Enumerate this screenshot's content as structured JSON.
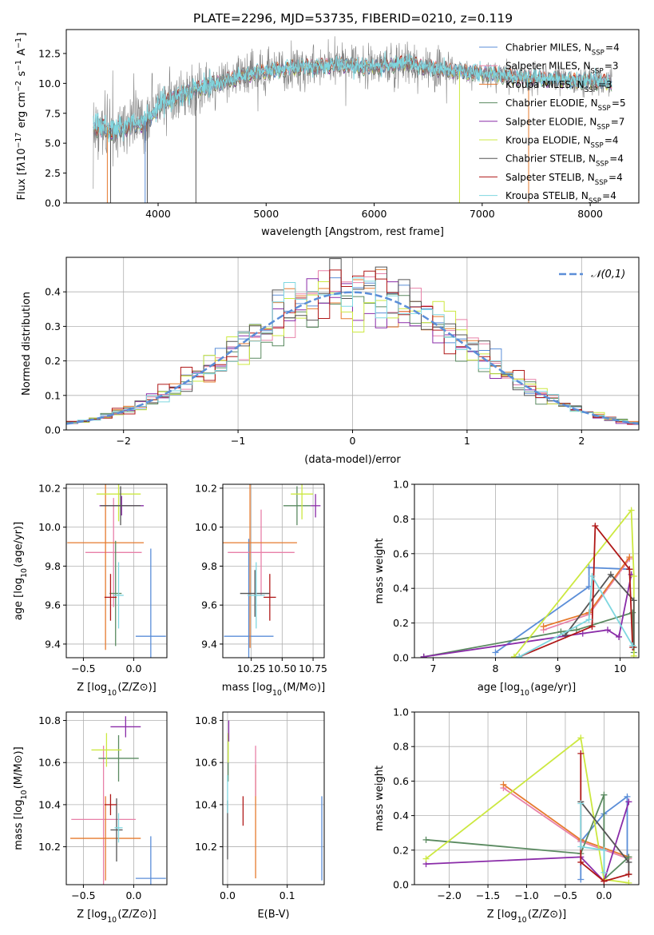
{
  "colors": {
    "blue": "#5b8ed8",
    "pink": "#e880a8",
    "orange": "#e67a2e",
    "green": "#5a8a60",
    "purple": "#8a2ca8",
    "yellow": "#cce840",
    "gray": "#555555",
    "red": "#b01818",
    "cyan": "#7fd7e0",
    "spec_gray": "#808080"
  },
  "chart_data": [
    {
      "id": "spectrum",
      "type": "line",
      "title": "PLATE=2296, MJD=53735, FIBERID=0210, z=0.119",
      "xlabel": "wavelength [Angstrom, rest frame]",
      "ylabel": "Flux [f$_\\lambda$10$^{-17}$ erg cm$^{-2}$ s$^{-1}$ A$^{-1}$]",
      "xlim": [
        3150,
        8450
      ],
      "ylim": [
        0,
        14.5
      ],
      "xticks": [
        4000,
        5000,
        6000,
        7000,
        8000
      ],
      "yticks": [
        "0.0",
        "2.5",
        "5.0",
        "7.5",
        "10.0",
        "12.5"
      ],
      "grid": false,
      "legend_position": "top-right",
      "legend": [
        {
          "label": "Chabrier MILES, N$_{SSP}$=4",
          "color": "blue"
        },
        {
          "label": "Salpeter MILES, N$_{SSP}$=3",
          "color": "pink"
        },
        {
          "label": "Kroupa MILES, N$_{SSP}$=3",
          "color": "orange"
        },
        {
          "label": "Chabrier ELODIE, N$_{SSP}$=5",
          "color": "green"
        },
        {
          "label": "Salpeter ELODIE, N$_{SSP}$=7",
          "color": "purple"
        },
        {
          "label": "Kroupa ELODIE, N$_{SSP}$=4",
          "color": "yellow"
        },
        {
          "label": "Chabrier STELIB, N$_{SSP}$=4",
          "color": "gray"
        },
        {
          "label": "Salpeter STELIB, N$_{SSP}$=4",
          "color": "red"
        },
        {
          "label": "Kroupa STELIB, N$_{SSP}$=4",
          "color": "cyan"
        }
      ],
      "continuum": {
        "x": [
          3400,
          3500,
          3600,
          3700,
          3800,
          3900,
          4000,
          4100,
          4200,
          4300,
          4500,
          4700,
          4900,
          5100,
          5300,
          5500,
          5700,
          5900,
          6100,
          6300,
          6500,
          6700,
          6900,
          7100,
          7300,
          7500,
          7700,
          7900,
          8200
        ],
        "y": [
          6.5,
          6.4,
          6.2,
          6.5,
          6.8,
          6.9,
          8.2,
          8.6,
          9.0,
          9.4,
          9.9,
          10.4,
          10.9,
          11.1,
          11.4,
          11.4,
          11.6,
          11.3,
          11.5,
          11.7,
          11.3,
          11.1,
          10.9,
          10.8,
          10.5,
          10.4,
          10.3,
          10.2,
          10.1
        ]
      },
      "spikes": [
        {
          "x": 3530,
          "color": "orange"
        },
        {
          "x": 3560,
          "color": "gray"
        },
        {
          "x": 3880,
          "color": "blue"
        },
        {
          "x": 3900,
          "color": "gray"
        },
        {
          "x": 4350,
          "color": "gray"
        },
        {
          "x": 6790,
          "color": "yellow"
        },
        {
          "x": 7430,
          "color": "orange"
        }
      ]
    },
    {
      "id": "residuals",
      "type": "histogram",
      "xlabel": "(data-model)/error",
      "ylabel": "Normed distribution",
      "xlim": [
        -2.5,
        2.5
      ],
      "ylim": [
        0,
        0.5
      ],
      "xticks": [
        "−2",
        "−1",
        "0",
        "1",
        "2"
      ],
      "yticks": [
        "0.0",
        "0.1",
        "0.2",
        "0.3",
        "0.4"
      ],
      "grid": true,
      "legend_position": "top-right",
      "legend": [
        {
          "label": "$\\mathcal{N}(0,1)$",
          "color": "blue",
          "dashed": true
        }
      ],
      "bin_width": 0.1
    },
    {
      "id": "age_vs_Z",
      "type": "errorbar",
      "xlabel": "Z [log$_{10}$(Z/Z$_\\odot$)]",
      "ylabel": "age  [log$_{10}$(age/yr)]",
      "xlim": [
        -0.67,
        0.33
      ],
      "ylim": [
        9.33,
        10.22
      ],
      "xticks": [
        [
          "−0.5",
          -0.5
        ],
        [
          "0.0",
          0
        ]
      ],
      "yticks": [
        [
          "9.4",
          9.4
        ],
        [
          "9.6",
          9.6
        ],
        [
          "9.8",
          9.8
        ],
        [
          "10.0",
          10.0
        ],
        [
          "10.2",
          10.2
        ]
      ],
      "grid": true,
      "points": [
        {
          "c": "blue",
          "x": 0.17,
          "y": 9.44,
          "xe": 0.15,
          "ye": 0.45
        },
        {
          "c": "pink",
          "x": -0.2,
          "y": 9.87,
          "xe": 0.28,
          "ye": 0.28
        },
        {
          "c": "orange",
          "x": -0.28,
          "y": 9.92,
          "xe": 0.38,
          "ye": 0.55
        },
        {
          "c": "green",
          "x": -0.18,
          "y": 9.66,
          "xe": 0.06,
          "ye": 0.27
        },
        {
          "c": "purple",
          "x": -0.12,
          "y": 10.11,
          "xe": 0.22,
          "ye": 0.05
        },
        {
          "c": "yellow",
          "x": -0.15,
          "y": 10.17,
          "xe": 0.22,
          "ye": 0.14
        },
        {
          "c": "gray",
          "x": -0.13,
          "y": 10.11,
          "xe": 0.2,
          "ye": 0.1
        },
        {
          "c": "red",
          "x": -0.23,
          "y": 9.64,
          "xe": 0.06,
          "ye": 0.12
        },
        {
          "c": "cyan",
          "x": -0.15,
          "y": 9.65,
          "xe": 0.05,
          "ye": 0.17
        }
      ]
    },
    {
      "id": "age_vs_mass",
      "type": "errorbar",
      "xlabel": "mass [log$_{10}$(M/M$_\\odot$)]",
      "ylabel": "",
      "xlim": [
        10.02,
        10.84
      ],
      "ylim": [
        9.33,
        10.22
      ],
      "xticks": [
        [
          "10.25",
          10.25
        ],
        [
          "10.50",
          10.5
        ],
        [
          "10.75",
          10.75
        ]
      ],
      "yticks": [
        [
          "9.4",
          9.4
        ],
        [
          "9.6",
          9.6
        ],
        [
          "9.8",
          9.8
        ],
        [
          "10.0",
          10.0
        ],
        [
          "10.2",
          10.2
        ]
      ],
      "grid": true,
      "points": [
        {
          "c": "blue",
          "x": 10.23,
          "y": 9.44,
          "xe": 0.2,
          "ye": 0.5
        },
        {
          "c": "pink",
          "x": 10.33,
          "y": 9.87,
          "xe": 0.27,
          "ye": 0.22
        },
        {
          "c": "orange",
          "x": 10.24,
          "y": 9.92,
          "xe": 0.38,
          "ye": 0.54
        },
        {
          "c": "green",
          "x": 10.62,
          "y": 10.11,
          "xe": 0.11,
          "ye": 0.1
        },
        {
          "c": "purple",
          "x": 10.77,
          "y": 10.11,
          "xe": 0.04,
          "ye": 0.06
        },
        {
          "c": "yellow",
          "x": 10.66,
          "y": 10.17,
          "xe": 0.09,
          "ye": 0.13
        },
        {
          "c": "gray",
          "x": 10.28,
          "y": 9.66,
          "xe": 0.12,
          "ye": 0.12
        },
        {
          "c": "red",
          "x": 10.4,
          "y": 9.64,
          "xe": 0.05,
          "ye": 0.12
        },
        {
          "c": "cyan",
          "x": 10.29,
          "y": 9.65,
          "xe": 0.07,
          "ye": 0.17
        }
      ]
    },
    {
      "id": "weights_vs_age",
      "type": "line",
      "xlabel": "age  [log$_{10}$(age/yr)]",
      "ylabel": "mass weight",
      "xlim": [
        6.7,
        10.3
      ],
      "ylim": [
        0,
        1
      ],
      "xticks": [
        [
          "7",
          7
        ],
        [
          "8",
          8
        ],
        [
          "9",
          9
        ],
        [
          "10",
          10
        ]
      ],
      "yticks": [
        [
          "0.0",
          0
        ],
        [
          "0.2",
          0.2
        ],
        [
          "0.4",
          0.4
        ],
        [
          "0.6",
          0.6
        ],
        [
          "0.8",
          0.8
        ],
        [
          "1.0",
          1.0
        ]
      ],
      "grid": true,
      "series": [
        {
          "c": "blue",
          "x": [
            8.0,
            9.5,
            9.5,
            10.15
          ],
          "y": [
            0.03,
            0.41,
            0.52,
            0.51
          ]
        },
        {
          "c": "pink",
          "x": [
            8.77,
            9.5,
            10.15
          ],
          "y": [
            0.16,
            0.25,
            0.57
          ]
        },
        {
          "c": "orange",
          "x": [
            8.77,
            9.5,
            10.15
          ],
          "y": [
            0.18,
            0.26,
            0.58
          ]
        },
        {
          "c": "green",
          "x": [
            6.85,
            9.05,
            9.3,
            10.2,
            10.22
          ],
          "y": [
            0.005,
            0.15,
            0.16,
            0.26,
            0.03
          ]
        },
        {
          "c": "purple",
          "x": [
            6.85,
            9.4,
            9.8,
            9.98,
            10.18
          ],
          "y": [
            0.005,
            0.14,
            0.16,
            0.12,
            0.48
          ]
        },
        {
          "c": "yellow",
          "x": [
            8.3,
            10.18,
            10.22,
            10.22
          ],
          "y": [
            0.005,
            0.85,
            0.47,
            0.01
          ]
        },
        {
          "c": "gray",
          "x": [
            9.12,
            9.85,
            10.22,
            10.22
          ],
          "y": [
            0.13,
            0.48,
            0.33,
            0.06
          ]
        },
        {
          "c": "red",
          "x": [
            8.38,
            9.55,
            9.6,
            10.15,
            10.2
          ],
          "y": [
            0.005,
            0.18,
            0.76,
            0.51,
            0.06
          ]
        },
        {
          "c": "cyan",
          "x": [
            8.38,
            9.5,
            9.55,
            10.2
          ],
          "y": [
            0.005,
            0.22,
            0.47,
            0.07
          ]
        }
      ]
    },
    {
      "id": "mass_vs_Z",
      "type": "errorbar",
      "xlabel": "Z [log$_{10}$(Z/Z$_\\odot$)]",
      "ylabel": "mass [log$_{10}$(M/M$_\\odot$)]",
      "xlim": [
        -0.67,
        0.33
      ],
      "ylim": [
        10.02,
        10.84
      ],
      "xticks": [
        [
          "−0.5",
          -0.5
        ],
        [
          "0.0",
          0
        ]
      ],
      "yticks": [
        [
          "10.2",
          10.2
        ],
        [
          "10.4",
          10.4
        ],
        [
          "10.6",
          10.6
        ],
        [
          "10.8",
          10.8
        ]
      ],
      "grid": true,
      "points": [
        {
          "c": "blue",
          "x": 0.17,
          "y": 10.05,
          "xe": 0.15,
          "ye": 0.2
        },
        {
          "c": "pink",
          "x": -0.3,
          "y": 10.33,
          "xe": 0.32,
          "ye": 0.35
        },
        {
          "c": "orange",
          "x": -0.28,
          "y": 10.24,
          "xe": 0.35,
          "ye": 0.2
        },
        {
          "c": "green",
          "x": -0.15,
          "y": 10.62,
          "xe": 0.2,
          "ye": 0.11
        },
        {
          "c": "purple",
          "x": -0.08,
          "y": 10.77,
          "xe": 0.15,
          "ye": 0.05
        },
        {
          "c": "yellow",
          "x": -0.27,
          "y": 10.66,
          "xe": 0.15,
          "ye": 0.08
        },
        {
          "c": "gray",
          "x": -0.17,
          "y": 10.28,
          "xe": 0.06,
          "ye": 0.15
        },
        {
          "c": "red",
          "x": -0.23,
          "y": 10.4,
          "xe": 0.06,
          "ye": 0.05
        },
        {
          "c": "cyan",
          "x": -0.15,
          "y": 10.29,
          "xe": 0.04,
          "ye": 0.07
        }
      ]
    },
    {
      "id": "mass_vs_ebv",
      "type": "errorbar",
      "xlabel": "E(B-V)",
      "ylabel": "",
      "xlim": [
        -0.008,
        0.162
      ],
      "ylim": [
        10.02,
        10.84
      ],
      "xticks": [
        [
          "0.0",
          0
        ],
        [
          "0.1",
          0.1
        ]
      ],
      "yticks": [
        [
          "10.2",
          10.2
        ],
        [
          "10.4",
          10.4
        ],
        [
          "10.6",
          10.6
        ],
        [
          "10.8",
          10.8
        ]
      ],
      "grid": true,
      "points": [
        {
          "c": "blue",
          "x": 0.158,
          "y": 10.24,
          "xe": 0,
          "ye": 0.2
        },
        {
          "c": "orange",
          "x": 0.047,
          "y": 10.32,
          "xe": 0,
          "ye": 0.27
        },
        {
          "c": "pink",
          "x": 0.047,
          "y": 10.56,
          "xe": 0,
          "ye": 0.12
        },
        {
          "c": "red",
          "x": 0.026,
          "y": 10.37,
          "xe": 0,
          "ye": 0.07
        },
        {
          "c": "green",
          "x": 0.001,
          "y": 10.62,
          "xe": 0,
          "ye": 0.11
        },
        {
          "c": "yellow",
          "x": 0.001,
          "y": 10.67,
          "xe": 0,
          "ye": 0.07
        },
        {
          "c": "purple",
          "x": 0.002,
          "y": 10.75,
          "xe": 0,
          "ye": 0.05
        },
        {
          "c": "gray",
          "x": 0.0,
          "y": 10.28,
          "xe": 0,
          "ye": 0.14
        },
        {
          "c": "cyan",
          "x": 0.0,
          "y": 10.45,
          "xe": 0,
          "ye": 0.09
        }
      ]
    },
    {
      "id": "weights_vs_Z",
      "type": "line",
      "xlabel": "Z [log$_{10}$(Z/Z$_\\odot$)]",
      "ylabel": "mass weight",
      "xlim": [
        -2.45,
        0.45
      ],
      "ylim": [
        0,
        1
      ],
      "xticks": [
        [
          "−2.0",
          -2
        ],
        [
          "−1.5",
          -1.5
        ],
        [
          "−1.0",
          -1
        ],
        [
          "−0.5",
          -0.5
        ],
        [
          "0.0",
          0
        ]
      ],
      "yticks": [
        [
          "0.0",
          0
        ],
        [
          "0.2",
          0.2
        ],
        [
          "0.4",
          0.4
        ],
        [
          "0.6",
          0.6
        ],
        [
          "0.8",
          0.8
        ],
        [
          "1.0",
          1.0
        ]
      ],
      "grid": true,
      "series": [
        {
          "c": "blue",
          "x": [
            -0.3,
            -0.3,
            0.0,
            0.3,
            0.3
          ],
          "y": [
            0.03,
            0.25,
            0.41,
            0.51,
            0.16
          ]
        },
        {
          "c": "pink",
          "x": [
            -1.3,
            -0.3,
            0.32
          ],
          "y": [
            0.56,
            0.25,
            0.15
          ]
        },
        {
          "c": "orange",
          "x": [
            -1.3,
            -0.3,
            0.32
          ],
          "y": [
            0.58,
            0.26,
            0.16
          ]
        },
        {
          "c": "green",
          "x": [
            -2.3,
            -0.3,
            0.0,
            0.0,
            0.32
          ],
          "y": [
            0.26,
            0.18,
            0.52,
            0.03,
            0.16
          ]
        },
        {
          "c": "purple",
          "x": [
            -2.3,
            -0.3,
            0.0,
            0.32
          ],
          "y": [
            0.12,
            0.16,
            0.02,
            0.48
          ]
        },
        {
          "c": "yellow",
          "x": [
            -2.3,
            -0.3,
            0.0,
            0.32
          ],
          "y": [
            0.15,
            0.85,
            0.03,
            0.01
          ]
        },
        {
          "c": "gray",
          "x": [
            -0.3,
            0.32,
            0.32
          ],
          "y": [
            0.48,
            0.13,
            0.06
          ]
        },
        {
          "c": "red",
          "x": [
            -0.3,
            -0.3,
            0.0,
            0.32
          ],
          "y": [
            0.76,
            0.13,
            0.02,
            0.06
          ]
        },
        {
          "c": "cyan",
          "x": [
            -0.3,
            -0.3,
            0.0,
            0.0
          ],
          "y": [
            0.47,
            0.22,
            0.2,
            0.07
          ]
        }
      ]
    }
  ]
}
